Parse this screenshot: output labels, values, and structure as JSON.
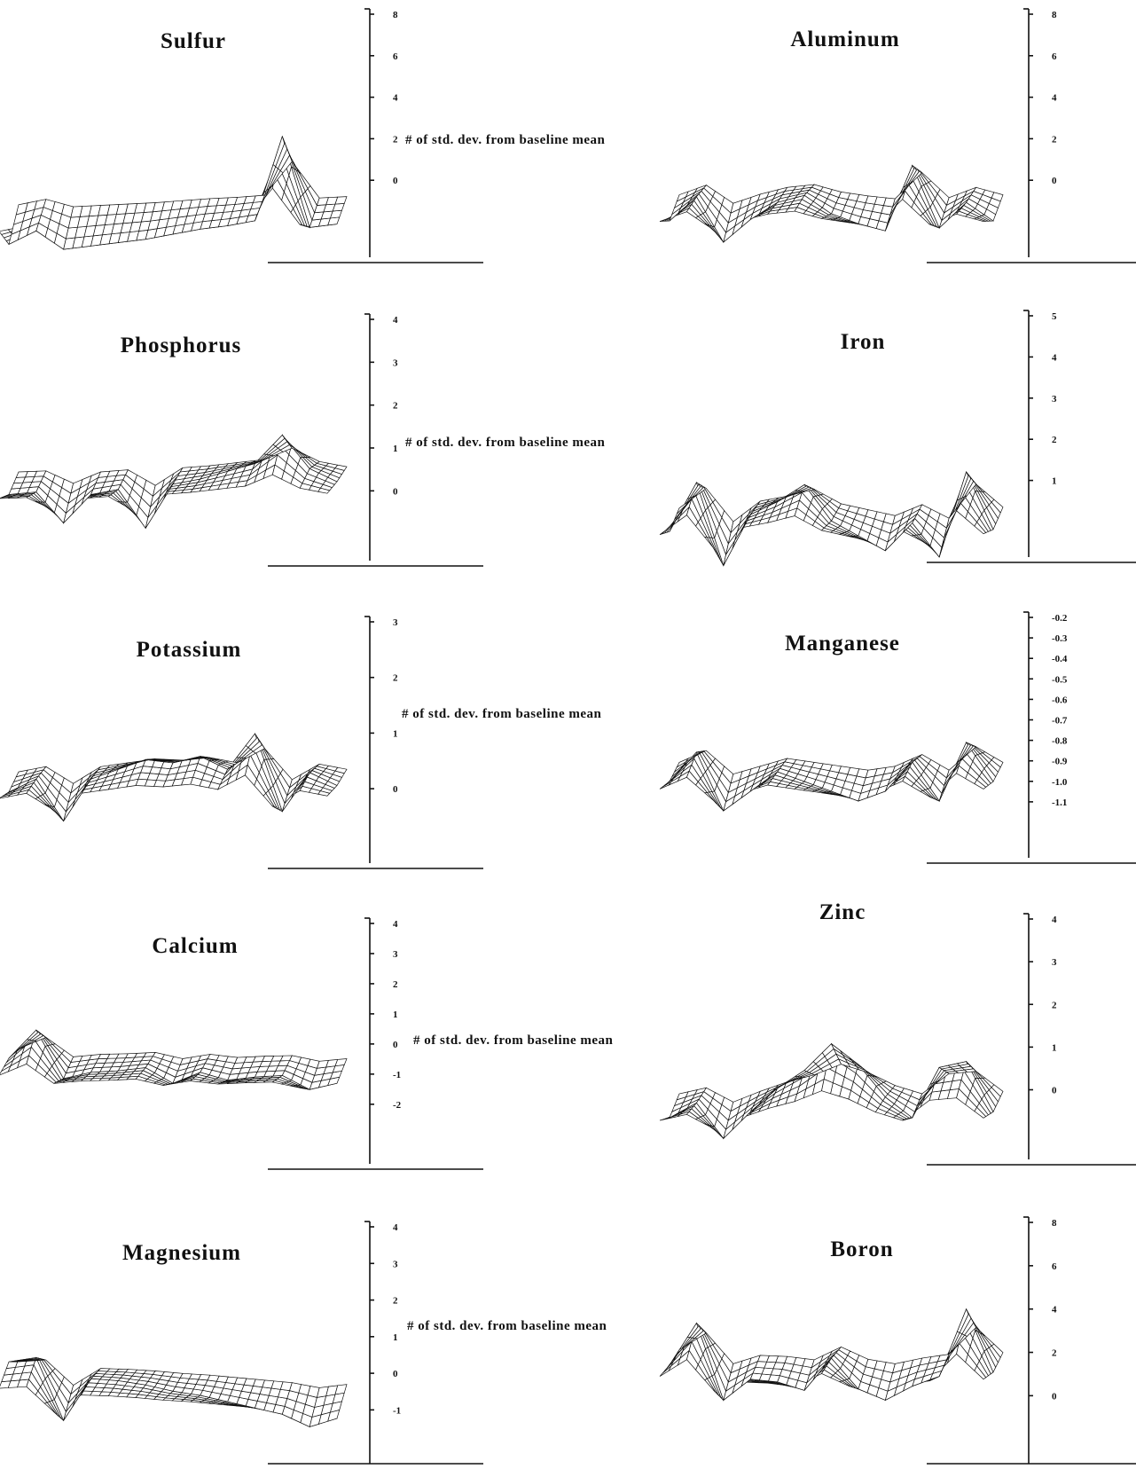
{
  "figure": {
    "axis_label": "# of std. dev. from baseline mean"
  },
  "chart_data": [
    {
      "type": "area",
      "title": "Sulfur",
      "yticks": [
        "0",
        "2",
        "4",
        "6",
        "8"
      ],
      "ylim": [
        -2,
        8
      ],
      "show_ylabel": true,
      "series": [
        {
          "values": [
            0.4,
            1.2,
            0.1,
            0.3,
            0.5,
            0.7,
            1.0,
            1.3,
            1.5,
            1.8,
            6.8,
            1.4,
            1.6
          ]
        }
      ]
    },
    {
      "type": "area",
      "title": "Aluminum",
      "yticks": [
        "0",
        "2",
        "4",
        "6",
        "8"
      ],
      "ylim": [
        -2,
        8
      ],
      "show_ylabel": false,
      "series": [
        {
          "values": [
            1.5,
            3.2,
            0.0,
            1.6,
            2.8,
            3.3,
            2.0,
            1.3,
            0.8,
            5.4,
            1.0,
            2.8,
            1.5
          ]
        }
      ]
    },
    {
      "type": "area",
      "title": "Phosphorus",
      "yticks": [
        "0",
        "1",
        "2",
        "3",
        "4"
      ],
      "ylim": [
        -0.8,
        4
      ],
      "show_ylabel": true,
      "series": [
        {
          "values": [
            1.0,
            1.1,
            -0.1,
            1.0,
            1.2,
            -0.3,
            1.4,
            1.6,
            1.9,
            2.2,
            3.3,
            2.0,
            1.5
          ]
        }
      ]
    },
    {
      "type": "area",
      "title": "Iron",
      "yticks": [
        "1",
        "2",
        "3",
        "4",
        "5"
      ],
      "ylim": [
        0,
        5
      ],
      "show_ylabel": true,
      "series": [
        {
          "values": [
            1.7,
            4.0,
            0.1,
            2.5,
            3.1,
            3.9,
            2.2,
            1.5,
            0.8,
            2.1,
            0.5,
            4.5,
            1.8
          ]
        }
      ]
    },
    {
      "type": "area",
      "title": "Potassium",
      "yticks": [
        "0",
        "1",
        "2",
        "3"
      ],
      "ylim": [
        -0.7,
        3
      ],
      "show_ylabel": true,
      "series": [
        {
          "values": [
            0.8,
            1.2,
            -0.1,
            1.2,
            1.5,
            1.8,
            1.7,
            1.9,
            1.5,
            2.6,
            0.2,
            1.4,
            1.0
          ]
        }
      ]
    },
    {
      "type": "area",
      "title": "Manganese",
      "yticks": [
        "-0.2",
        "-0.3",
        "-0.4",
        "-0.5",
        "-0.6",
        "-0.7",
        "-0.8",
        "-0.9",
        "-1.0",
        "-1.1"
      ],
      "ylim": [
        -1.2,
        -0.2
      ],
      "show_ylabel": false,
      "series": [
        {
          "values": [
            -0.8,
            -0.5,
            -1.1,
            -0.9,
            -0.7,
            -0.8,
            -0.9,
            -1.0,
            -0.9,
            -0.6,
            -1.0,
            -0.4,
            -0.8
          ]
        }
      ]
    },
    {
      "type": "area",
      "title": "Calcium",
      "yticks": [
        "-2",
        "-1",
        "0",
        "1",
        "2",
        "3",
        "4"
      ],
      "ylim": [
        -2.8,
        4
      ],
      "show_ylabel": true,
      "series": [
        {
          "values": [
            1.0,
            2.8,
            -0.3,
            0.1,
            0.2,
            0.4,
            -0.6,
            0.1,
            -0.4,
            -0.2,
            -0.1,
            -1.0,
            -0.6
          ]
        }
      ]
    },
    {
      "type": "area",
      "title": "Zinc",
      "yticks": [
        "0",
        "1",
        "2",
        "3",
        "4"
      ],
      "ylim": [
        -0.8,
        4
      ],
      "show_ylabel": true,
      "series": [
        {
          "values": [
            1.0,
            1.5,
            0.3,
            1.2,
            2.0,
            2.6,
            3.5,
            2.8,
            1.7,
            1.0,
            2.7,
            2.9,
            1.2
          ]
        }
      ]
    },
    {
      "type": "area",
      "title": "Magnesium",
      "yticks": [
        "-1",
        "0",
        "1",
        "2",
        "3",
        "4"
      ],
      "ylim": [
        -1.5,
        4
      ],
      "show_ylabel": true,
      "series": [
        {
          "values": [
            2.3,
            2.5,
            -0.5,
            1.5,
            1.4,
            1.2,
            0.9,
            0.7,
            0.4,
            0.1,
            -0.2,
            -0.8,
            -0.4
          ]
        }
      ]
    },
    {
      "type": "area",
      "title": "Boron",
      "yticks": [
        "0",
        "2",
        "4",
        "6",
        "8"
      ],
      "ylim": [
        -1.5,
        8
      ],
      "show_ylabel": false,
      "series": [
        {
          "values": [
            3.0,
            6.0,
            0.5,
            2.0,
            1.8,
            1.2,
            3.5,
            1.3,
            0.5,
            1.5,
            2.2,
            7.0,
            2.5
          ]
        }
      ]
    }
  ]
}
